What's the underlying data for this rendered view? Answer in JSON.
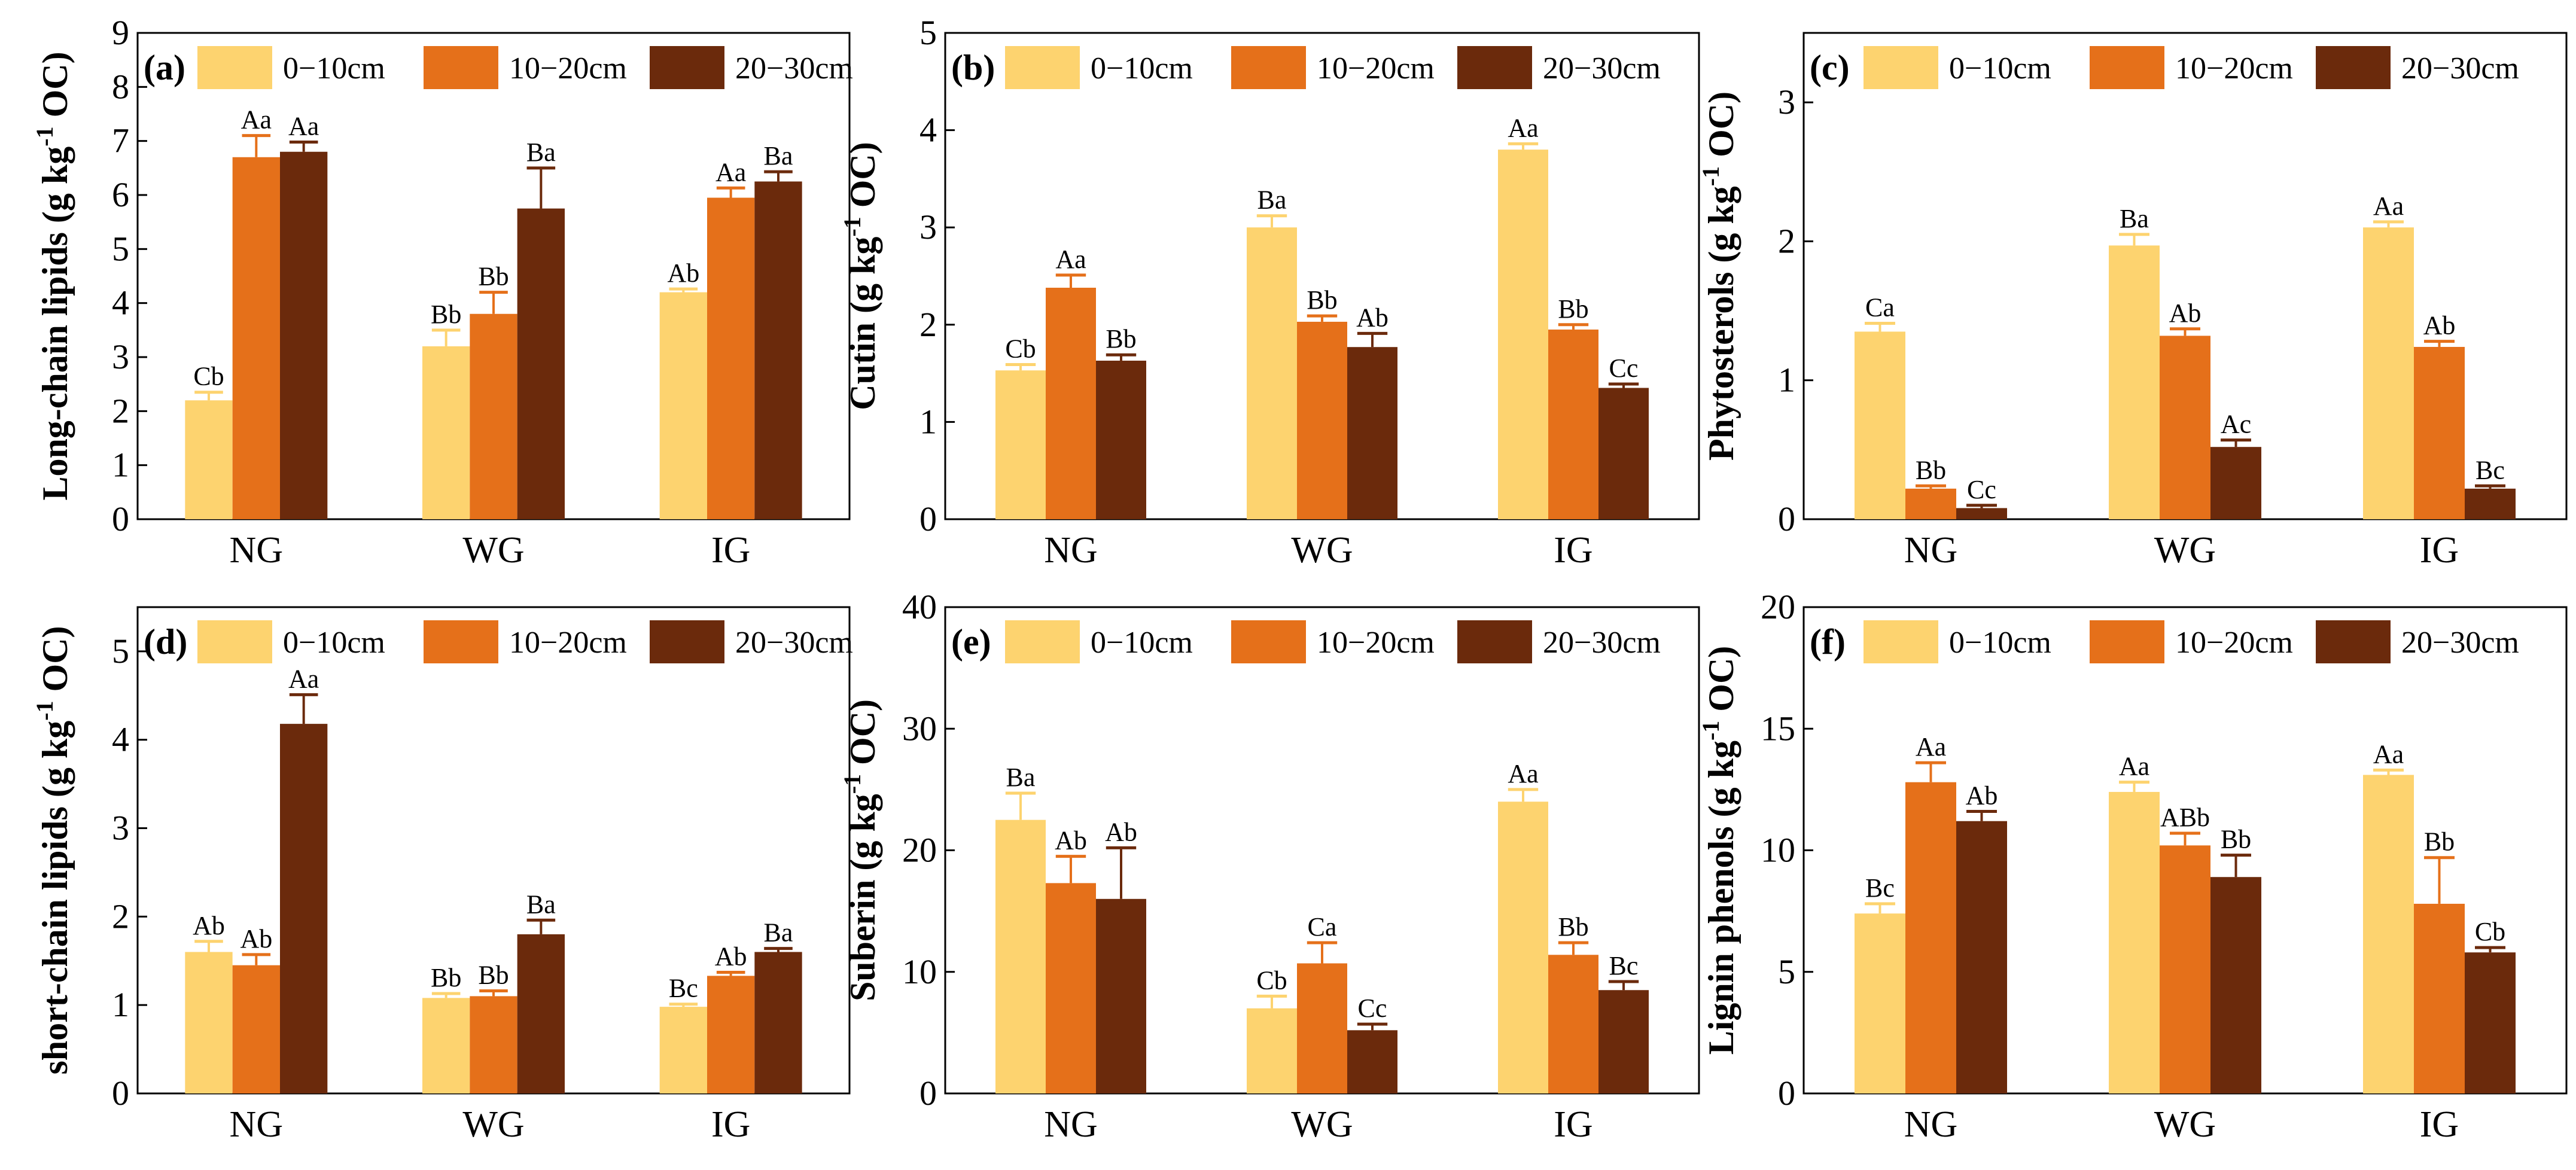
{
  "chart_data": [
    {
      "type": "bar",
      "panel_label": "(a)",
      "ylabel_main": "Long-chain lipids (g kg",
      "ylabel_sup": "-1",
      "ylabel_end": " OC)",
      "categories": [
        "NG",
        "WG",
        "IG"
      ],
      "ylim": [
        0,
        9
      ],
      "yticks": [
        "0",
        "1",
        "2",
        "3",
        "4",
        "5",
        "6",
        "7",
        "8",
        "9"
      ],
      "series": [
        {
          "name": "0−10cm",
          "color": "#FDD36F",
          "values": [
            2.2,
            3.2,
            4.2
          ],
          "errors": [
            0.15,
            0.3,
            0.06
          ],
          "labels": [
            "Cb",
            "Bb",
            "Ab"
          ]
        },
        {
          "name": "10−20cm",
          "color": "#E5701A",
          "values": [
            6.7,
            3.8,
            5.95
          ],
          "errors": [
            0.4,
            0.4,
            0.18
          ],
          "labels": [
            "Aa",
            "Bb",
            "Aa"
          ]
        },
        {
          "name": "20−30cm",
          "color": "#6B2A0C",
          "values": [
            6.8,
            5.75,
            6.25
          ],
          "errors": [
            0.18,
            0.75,
            0.18
          ],
          "labels": [
            "Aa",
            "Ba",
            "Ba"
          ]
        }
      ]
    },
    {
      "type": "bar",
      "panel_label": "(b)",
      "ylabel_main": "Cutin (g kg",
      "ylabel_sup": "-1",
      "ylabel_end": " OC)",
      "categories": [
        "NG",
        "WG",
        "IG"
      ],
      "ylim": [
        0,
        5
      ],
      "yticks": [
        "0",
        "1",
        "2",
        "3",
        "4",
        "5"
      ],
      "series": [
        {
          "name": "0−10cm",
          "color": "#FDD36F",
          "values": [
            1.53,
            3.0,
            3.8
          ],
          "errors": [
            0.06,
            0.12,
            0.06
          ],
          "labels": [
            "Cb",
            "Ba",
            "Aa"
          ]
        },
        {
          "name": "10−20cm",
          "color": "#E5701A",
          "values": [
            2.38,
            2.03,
            1.95
          ],
          "errors": [
            0.13,
            0.06,
            0.05
          ],
          "labels": [
            "Aa",
            "Bb",
            "Bb"
          ]
        },
        {
          "name": "20−30cm",
          "color": "#6B2A0C",
          "values": [
            1.63,
            1.77,
            1.35
          ],
          "errors": [
            0.06,
            0.14,
            0.04
          ],
          "labels": [
            "Bb",
            "Ab",
            "Cc"
          ]
        }
      ]
    },
    {
      "type": "bar",
      "panel_label": "(c)",
      "ylabel_main": "Phytosterols (g kg",
      "ylabel_sup": "-1",
      "ylabel_end": " OC)",
      "categories": [
        "NG",
        "WG",
        "IG"
      ],
      "ylim": [
        0,
        3.5
      ],
      "yticks": [
        "0",
        "1",
        "2",
        "3"
      ],
      "ytick_values": [
        0,
        1,
        2,
        3
      ],
      "series": [
        {
          "name": "0−10cm",
          "color": "#FDD36F",
          "values": [
            1.35,
            1.97,
            2.1
          ],
          "errors": [
            0.06,
            0.08,
            0.04
          ],
          "labels": [
            "Ca",
            "Ba",
            "Aa"
          ]
        },
        {
          "name": "10−20cm",
          "color": "#E5701A",
          "values": [
            0.22,
            1.32,
            1.24
          ],
          "errors": [
            0.02,
            0.05,
            0.04
          ],
          "labels": [
            "Bb",
            "Ab",
            "Ab"
          ]
        },
        {
          "name": "20−30cm",
          "color": "#6B2A0C",
          "values": [
            0.08,
            0.52,
            0.22
          ],
          "errors": [
            0.02,
            0.05,
            0.02
          ],
          "labels": [
            "Cc",
            "Ac",
            "Bc"
          ]
        }
      ]
    },
    {
      "type": "bar",
      "panel_label": "(d)",
      "ylabel_main": "short-chain lipids (g kg",
      "ylabel_sup": "-1",
      "ylabel_end": " OC)",
      "categories": [
        "NG",
        "WG",
        "IG"
      ],
      "ylim": [
        0,
        5.5
      ],
      "yticks": [
        "0",
        "1",
        "2",
        "3",
        "4",
        "5"
      ],
      "ytick_values": [
        0,
        1,
        2,
        3,
        4,
        5
      ],
      "series": [
        {
          "name": "0−10cm",
          "color": "#FDD36F",
          "values": [
            1.6,
            1.08,
            0.98
          ],
          "errors": [
            0.12,
            0.05,
            0.03
          ],
          "labels": [
            "Ab",
            "Bb",
            "Bc"
          ]
        },
        {
          "name": "10−20cm",
          "color": "#E5701A",
          "values": [
            1.45,
            1.1,
            1.33
          ],
          "errors": [
            0.12,
            0.06,
            0.04
          ],
          "labels": [
            "Ab",
            "Bb",
            "Ab"
          ]
        },
        {
          "name": "20−30cm",
          "color": "#6B2A0C",
          "values": [
            4.18,
            1.8,
            1.6
          ],
          "errors": [
            0.33,
            0.16,
            0.04
          ],
          "labels": [
            "Aa",
            "Ba",
            "Ba"
          ]
        }
      ]
    },
    {
      "type": "bar",
      "panel_label": "(e)",
      "ylabel_main": "Suberin (g kg",
      "ylabel_sup": "-1",
      "ylabel_end": " OC)",
      "categories": [
        "NG",
        "WG",
        "IG"
      ],
      "ylim": [
        0,
        40
      ],
      "yticks": [
        "0",
        "10",
        "20",
        "30",
        "40"
      ],
      "series": [
        {
          "name": "0−10cm",
          "color": "#FDD36F",
          "values": [
            22.5,
            7.0,
            24.0
          ],
          "errors": [
            2.2,
            1.0,
            1.0
          ],
          "labels": [
            "Ba",
            "Cb",
            "Aa"
          ]
        },
        {
          "name": "10−20cm",
          "color": "#E5701A",
          "values": [
            17.3,
            10.7,
            11.4
          ],
          "errors": [
            2.2,
            1.7,
            1.0
          ],
          "labels": [
            "Ab",
            "Ca",
            "Bb"
          ]
        },
        {
          "name": "20−30cm",
          "color": "#6B2A0C",
          "values": [
            16.0,
            5.2,
            8.5
          ],
          "errors": [
            4.2,
            0.5,
            0.7
          ],
          "labels": [
            "Ab",
            "Cc",
            "Bc"
          ]
        }
      ]
    },
    {
      "type": "bar",
      "panel_label": "(f)",
      "ylabel_main": "Lignin phenols (g kg",
      "ylabel_sup": "-1",
      "ylabel_end": " OC)",
      "categories": [
        "NG",
        "WG",
        "IG"
      ],
      "ylim": [
        0,
        20
      ],
      "yticks": [
        "0",
        "5",
        "10",
        "15",
        "20"
      ],
      "series": [
        {
          "name": "0−10cm",
          "color": "#FDD36F",
          "values": [
            7.4,
            12.4,
            13.1
          ],
          "errors": [
            0.4,
            0.4,
            0.2
          ],
          "labels": [
            "Bc",
            "Aa",
            "Aa"
          ]
        },
        {
          "name": "10−20cm",
          "color": "#E5701A",
          "values": [
            12.8,
            10.2,
            7.8
          ],
          "errors": [
            0.8,
            0.5,
            1.9
          ],
          "labels": [
            "Aa",
            "ABb",
            "Bb"
          ]
        },
        {
          "name": "20−30cm",
          "color": "#6B2A0C",
          "values": [
            11.2,
            8.9,
            5.8
          ],
          "errors": [
            0.4,
            0.9,
            0.2
          ],
          "labels": [
            "Ab",
            "Bb",
            "Cb"
          ]
        }
      ]
    }
  ]
}
